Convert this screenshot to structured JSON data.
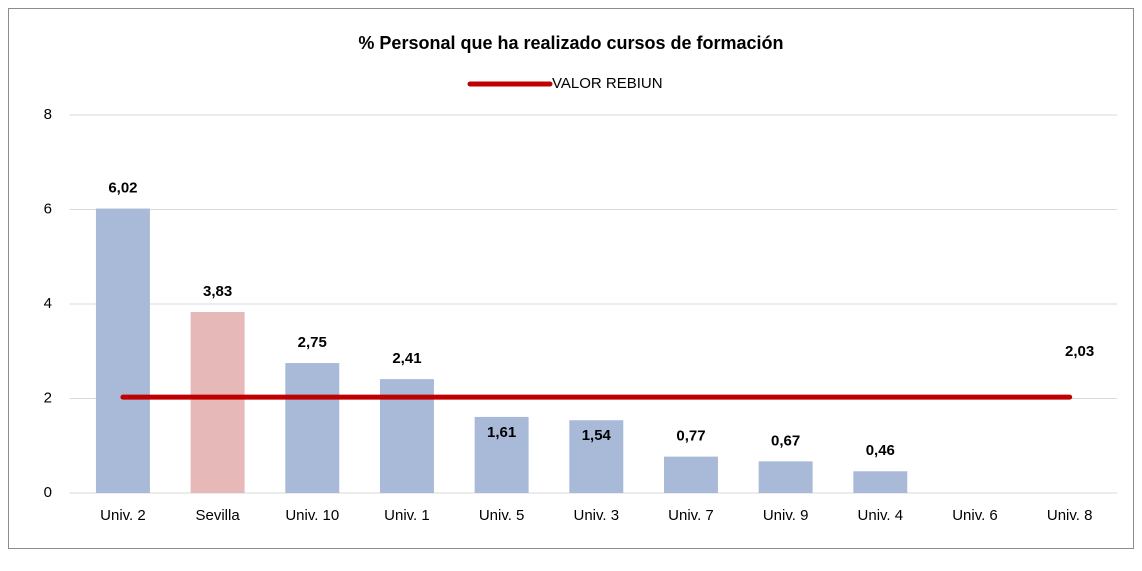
{
  "chart_data": {
    "type": "bar",
    "title": "%  Personal que ha realizado cursos de formación",
    "categories": [
      "Univ. 2",
      "Sevilla",
      "Univ. 10",
      "Univ. 1",
      "Univ. 5",
      "Univ. 3",
      "Univ. 7",
      "Univ. 9",
      "Univ. 4",
      "Univ. 6",
      "Univ. 8"
    ],
    "values": [
      6.02,
      3.83,
      2.75,
      2.41,
      1.61,
      1.54,
      0.77,
      0.67,
      0.46,
      null,
      null
    ],
    "value_labels": [
      "6,02",
      "3,83",
      "2,75",
      "2,41",
      "1,61",
      "1,54",
      "0,77",
      "0,67",
      "0,46",
      null,
      null
    ],
    "colors": [
      "#a9bad8",
      "#e6b8b7",
      "#a9bad8",
      "#a9bad8",
      "#a9bad8",
      "#a9bad8",
      "#a9bad8",
      "#a9bad8",
      "#a9bad8",
      "#a9bad8",
      "#a9bad8"
    ],
    "reference": {
      "name": "VALOR REBIUN",
      "value": 2.03,
      "value_label": "2,03",
      "color": "#c00000"
    },
    "ylim": [
      0,
      8
    ],
    "yticks": [
      0,
      2,
      4,
      6,
      8
    ],
    "grid": true,
    "legend": "top"
  }
}
